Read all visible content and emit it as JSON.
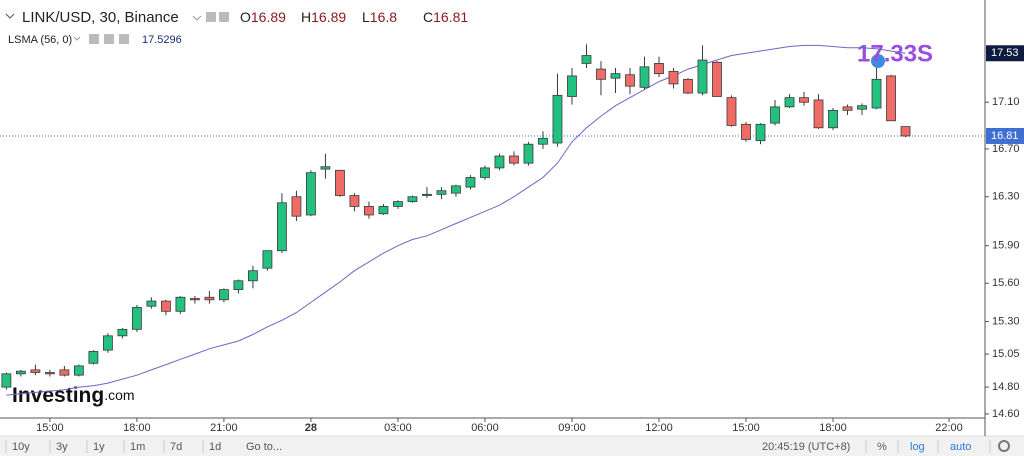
{
  "chart_data": {
    "type": "candlestick",
    "title": "LINK/USD, 30, Binance",
    "ohlc_header": [
      {
        "name": "O",
        "value": 16.89
      },
      {
        "name": "H",
        "value": 16.89
      },
      {
        "name": "L",
        "value": 16.8
      },
      {
        "name": "C",
        "value": 16.81
      }
    ],
    "indicator": {
      "name": "LSMA (56, 0)",
      "value": 17.5296
    },
    "overlay_text": "17.33S",
    "logo": {
      "name": "Investing",
      "suffix": ".com"
    },
    "log_scale": true,
    "up_color": "#23c17f",
    "down_color": "#f06b66",
    "sma_color": "#6f64c4",
    "price_line_color": "#3f6fd1",
    "x": [
      13.5,
      14,
      14.5,
      15,
      15.5,
      16,
      16.5,
      17,
      17.5,
      18,
      18.5,
      19,
      19.5,
      20,
      20.5,
      21,
      21.5,
      22,
      22.5,
      23,
      23.5,
      24,
      24.5,
      25,
      25.5,
      26,
      26.5,
      27,
      27.5,
      28,
      28.5,
      29,
      29.5,
      30,
      30.5,
      31,
      31.5,
      32,
      32.5,
      33,
      33.5,
      34,
      34.5,
      35,
      35.5,
      36,
      36.5,
      37,
      37.5,
      38,
      38.5,
      39,
      39.5,
      40,
      40.5,
      41,
      41.5,
      42,
      42.5,
      43,
      43.5,
      44,
      44.5
    ],
    "open": [
      14.8,
      14.9,
      14.93,
      14.91,
      14.93,
      14.89,
      14.98,
      15.08,
      15.19,
      15.24,
      15.42,
      15.46,
      15.38,
      15.48,
      15.49,
      15.47,
      15.55,
      15.62,
      15.72,
      15.86,
      16.3,
      16.15,
      16.53,
      16.52,
      16.31,
      16.22,
      16.16,
      16.22,
      16.26,
      16.31,
      16.32,
      16.33,
      16.38,
      16.46,
      16.54,
      16.64,
      16.58,
      16.74,
      16.75,
      17.15,
      17.44,
      17.39,
      17.31,
      17.34,
      17.23,
      17.44,
      17.37,
      17.3,
      17.18,
      17.45,
      17.14,
      16.91,
      16.77,
      16.92,
      17.06,
      17.14,
      17.12,
      16.88,
      17.06,
      17.04,
      17.05,
      17.33,
      16.89
    ],
    "high": [
      14.91,
      14.93,
      14.97,
      14.93,
      14.96,
      14.97,
      15.08,
      15.21,
      15.25,
      15.43,
      15.49,
      15.47,
      15.5,
      15.5,
      15.54,
      15.56,
      15.63,
      15.74,
      15.86,
      16.33,
      16.35,
      16.52,
      16.66,
      16.52,
      16.33,
      16.26,
      16.24,
      16.27,
      16.31,
      16.38,
      16.38,
      16.4,
      16.48,
      16.56,
      16.66,
      16.68,
      16.76,
      16.85,
      17.35,
      17.4,
      17.61,
      17.46,
      17.4,
      17.4,
      17.5,
      17.5,
      17.4,
      17.31,
      17.6,
      17.46,
      17.16,
      16.93,
      16.92,
      17.12,
      17.17,
      17.19,
      17.17,
      17.05,
      17.08,
      17.09,
      17.4,
      17.34,
      16.89
    ],
    "low": [
      14.78,
      14.88,
      14.89,
      14.88,
      14.88,
      14.88,
      14.97,
      15.06,
      15.17,
      15.22,
      15.4,
      15.35,
      15.36,
      15.44,
      15.44,
      15.45,
      15.52,
      15.56,
      15.7,
      15.84,
      16.1,
      16.14,
      16.45,
      16.3,
      16.18,
      16.12,
      16.15,
      16.2,
      16.25,
      16.29,
      16.28,
      16.3,
      16.36,
      16.44,
      16.52,
      16.56,
      16.56,
      16.7,
      16.72,
      17.08,
      17.4,
      17.16,
      17.18,
      17.17,
      17.21,
      17.32,
      17.22,
      17.17,
      17.16,
      17.15,
      16.89,
      16.76,
      16.74,
      16.9,
      17.05,
      17.07,
      16.87,
      16.86,
      16.99,
      16.99,
      17.04,
      16.94,
      16.8
    ],
    "close": [
      14.9,
      14.92,
      14.91,
      14.9,
      14.89,
      14.96,
      15.07,
      15.19,
      15.24,
      15.41,
      15.46,
      15.38,
      15.49,
      15.47,
      15.47,
      15.55,
      15.62,
      15.7,
      15.86,
      16.25,
      16.14,
      16.5,
      16.55,
      16.31,
      16.22,
      16.15,
      16.22,
      16.26,
      16.3,
      16.32,
      16.35,
      16.39,
      16.46,
      16.54,
      16.64,
      16.58,
      16.74,
      16.79,
      17.16,
      17.33,
      17.51,
      17.3,
      17.35,
      17.24,
      17.41,
      17.35,
      17.26,
      17.18,
      17.47,
      17.15,
      16.9,
      16.78,
      16.91,
      17.06,
      17.14,
      17.1,
      16.88,
      17.03,
      17.03,
      17.07,
      17.3,
      16.94,
      16.81
    ],
    "sma": [
      14.74,
      14.75,
      14.76,
      14.77,
      14.78,
      14.8,
      14.81,
      14.83,
      14.86,
      14.89,
      14.93,
      14.97,
      15.01,
      15.05,
      15.09,
      15.12,
      15.15,
      15.2,
      15.26,
      15.31,
      15.37,
      15.45,
      15.53,
      15.61,
      15.7,
      15.77,
      15.84,
      15.9,
      15.95,
      15.98,
      16.03,
      16.08,
      16.13,
      16.18,
      16.23,
      16.3,
      16.38,
      16.46,
      16.58,
      16.76,
      16.88,
      16.98,
      17.07,
      17.14,
      17.21,
      17.28,
      17.33,
      17.39,
      17.43,
      17.47,
      17.51,
      17.53,
      17.55,
      17.57,
      17.59,
      17.6,
      17.6,
      17.59,
      17.58,
      17.58,
      17.57,
      17.55,
      17.5296
    ],
    "sma_axis_label": 17.53,
    "price_axis_label": 16.81,
    "xlim": [
      13.28,
      47.24
    ],
    "xticks": [
      {
        "value": 15,
        "label": "15:00"
      },
      {
        "value": 18,
        "label": "18:00"
      },
      {
        "value": 21,
        "label": "21:00"
      },
      {
        "value": 24,
        "label": "28"
      },
      {
        "value": 27,
        "label": "03:00"
      },
      {
        "value": 30,
        "label": "06:00"
      },
      {
        "value": 33,
        "label": "09:00"
      },
      {
        "value": 36,
        "label": "12:00"
      },
      {
        "value": 39,
        "label": "15:00"
      },
      {
        "value": 42,
        "label": "18:00"
      },
      {
        "value": 46,
        "label": "22:00"
      }
    ],
    "ylim": [
      14.57,
      18.01
    ],
    "yticks": [
      {
        "value": 14.6,
        "label": "14.60"
      },
      {
        "value": 14.8,
        "label": "14.80"
      },
      15.05,
      {
        "value": 15.3,
        "label": "15.30"
      },
      {
        "value": 15.6,
        "label": "15.60"
      },
      {
        "value": 15.9,
        "label": "15.90"
      },
      {
        "value": 16.3,
        "label": "16.30"
      },
      {
        "value": 16.7,
        "label": "16.70"
      },
      {
        "value": 17.1,
        "label": "17.10"
      }
    ]
  },
  "toolbar": {
    "ranges": [
      "10y",
      "3y",
      "1y",
      "1m",
      "7d",
      "1d"
    ],
    "goto": "Go to...",
    "clock": "20:45:19 (UTC+8)",
    "percent": "%",
    "log": "log",
    "auto": "auto"
  }
}
